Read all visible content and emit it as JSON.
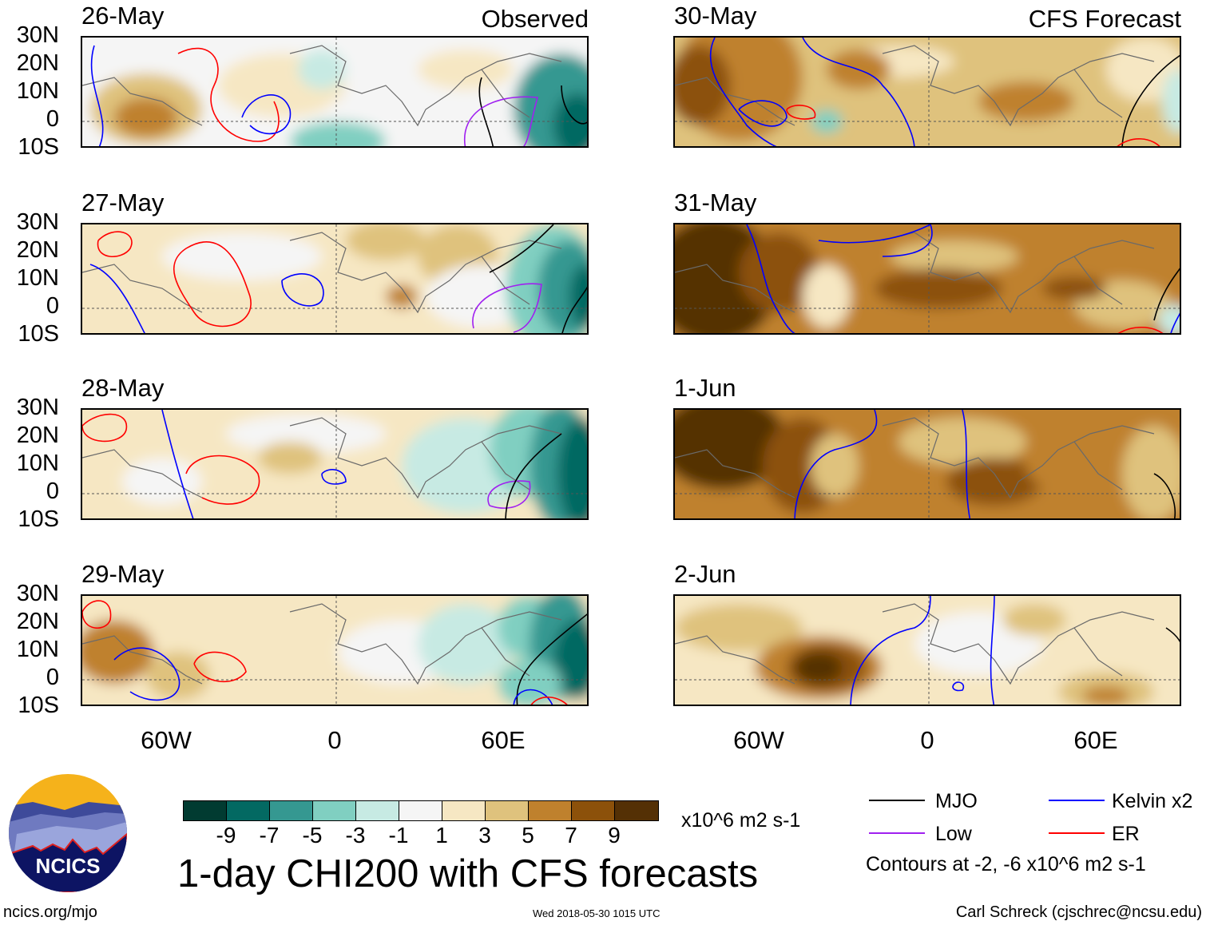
{
  "header": {
    "observed_label": "Observed",
    "forecast_label": "CFS Forecast"
  },
  "panels": [
    {
      "date": "26-May",
      "type": "observed"
    },
    {
      "date": "27-May",
      "type": "observed"
    },
    {
      "date": "28-May",
      "type": "observed"
    },
    {
      "date": "29-May",
      "type": "observed"
    },
    {
      "date": "30-May",
      "type": "forecast"
    },
    {
      "date": "31-May",
      "type": "forecast"
    },
    {
      "date": "1-Jun",
      "type": "forecast"
    },
    {
      "date": "2-Jun",
      "type": "forecast"
    }
  ],
  "axes": {
    "lat_labels": [
      "30N",
      "20N",
      "10N",
      "0",
      "10S"
    ],
    "lon_labels": [
      "60W",
      "0",
      "60E"
    ]
  },
  "colorbar": {
    "ticks": [
      "-9",
      "-7",
      "-5",
      "-3",
      "-1",
      "1",
      "3",
      "5",
      "7",
      "9"
    ],
    "colors": [
      "#013b31",
      "#036962",
      "#359891",
      "#80cfc1",
      "#c7eae3",
      "#f5f5f5",
      "#f6e7c3",
      "#dfc27d",
      "#bf812d",
      "#8c510a",
      "#543005"
    ],
    "units": "x10^6 m2 s-1"
  },
  "title": "1-day CHI200 with CFS forecasts",
  "legend": {
    "items": [
      {
        "label": "MJO",
        "color": "#000000"
      },
      {
        "label": "Kelvin x2",
        "color": "#0000ff"
      },
      {
        "label": "Low",
        "color": "#a020f0"
      },
      {
        "label": "ER",
        "color": "#ff0000"
      }
    ],
    "contours_note": "Contours at -2, -6 x10^6 m2 s-1"
  },
  "footer": {
    "logo_text": "NCICS",
    "url": "ncics.org/mjo",
    "timestamp": "Wed 2018-05-30 1015 UTC",
    "author": "Carl Schreck (cjschrec@ncsu.edu)"
  }
}
